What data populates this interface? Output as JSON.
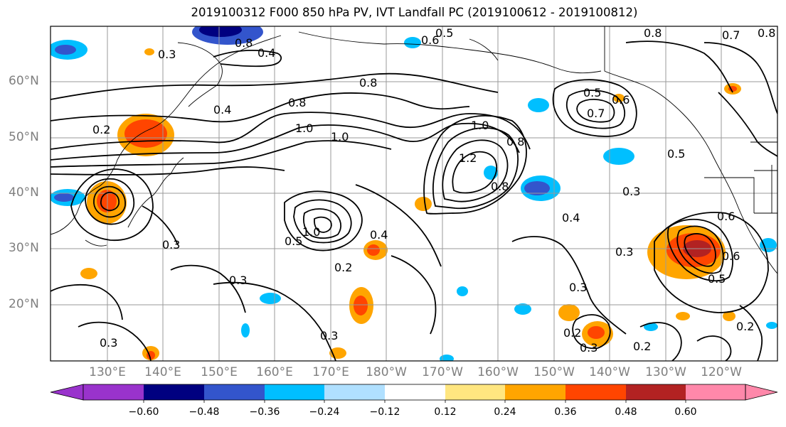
{
  "title": "2019100312 F000 850 hPa PV, IVT Landfall PC (2019100612 - 2019100812)",
  "lat_labels": [
    "60°N",
    "50°N",
    "40°N",
    "30°N",
    "20°N"
  ],
  "lon_labels": [
    "130°E",
    "140°E",
    "150°E",
    "160°E",
    "170°E",
    "180°W",
    "170°W",
    "160°W",
    "150°W",
    "140°W",
    "130°W",
    "120°W"
  ],
  "colorbar": {
    "labels": [
      "−0.60",
      "−0.48",
      "−0.36",
      "−0.24",
      "−0.12",
      "0.12",
      "0.24",
      "0.36",
      "0.48",
      "0.60"
    ],
    "colors": [
      "#9933cc",
      "#000080",
      "#3355cc",
      "#00bfff",
      "#b0e0ff",
      "#ffffff",
      "#ffe680",
      "#ffa500",
      "#ff4500",
      "#b22222",
      "#ff88aa"
    ]
  },
  "contour_labels": [
    "0.8",
    "0.4",
    "0.3",
    "0.2",
    "0.6",
    "0.4",
    "0.8",
    "0.5",
    "0.8",
    "1.0",
    "1.0",
    "1.0",
    "1.2",
    "0.8",
    "0.5",
    "0.7",
    "0.6",
    "0.5",
    "0.3",
    "0.6",
    "0.3",
    "0.4",
    "0.8",
    "0.5",
    "1.0",
    "0.4",
    "0.3",
    "0.3",
    "0.2",
    "0.3",
    "0.3",
    "0.3",
    "0.2",
    "0.3",
    "0.2",
    "0.6",
    "0.5",
    "0.2",
    "0.8",
    "0.7",
    "0.8"
  ]
}
